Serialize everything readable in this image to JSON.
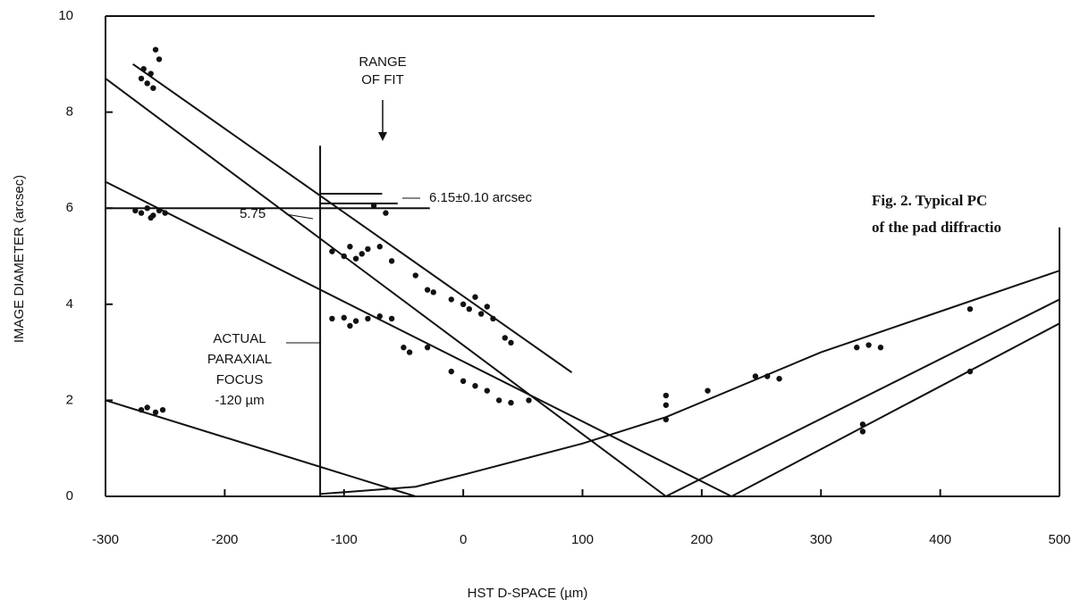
{
  "chart_data": {
    "type": "scatter",
    "xlabel": "HST  D-SPACE (µm)",
    "ylabel": "IMAGE DIAMETER (arcsec)",
    "xlim": [
      -300,
      500
    ],
    "xticks": [
      -300,
      -200,
      -100,
      0,
      100,
      200,
      300,
      400,
      500
    ],
    "ylim": [
      0,
      10
    ],
    "yticks": [
      0,
      2,
      4,
      6,
      8,
      10
    ],
    "color": "#111111",
    "annotations": [
      "RANGE",
      "OF FIT",
      "6.15±0.10 arcsec",
      "5.75",
      "ACTUAL",
      "PARAXIAL",
      "FOCUS",
      "-120 µm"
    ],
    "points": {
      "x": [
        -270,
        -265,
        -262,
        -258,
        -255,
        -268,
        -260,
        -275,
        -270,
        -265,
        -260,
        -255,
        -250,
        -262,
        -270,
        -265,
        -258,
        -252,
        -110,
        -100,
        -95,
        -85,
        -80,
        -70,
        -90,
        -110,
        -100,
        -90,
        -80,
        -70,
        -60,
        -95,
        -75,
        -65,
        -60,
        -40,
        -30,
        -25,
        -10,
        0,
        5,
        10,
        15,
        20,
        25,
        35,
        40,
        -50,
        -45,
        -30,
        -10,
        0,
        10,
        20,
        30,
        40,
        55,
        170,
        170,
        170,
        205,
        245,
        255,
        265,
        330,
        340,
        350,
        335,
        335,
        425,
        425
      ],
      "values": [
        8.7,
        8.6,
        8.8,
        9.3,
        9.1,
        8.9,
        8.5,
        5.95,
        5.9,
        6.0,
        5.85,
        5.95,
        5.9,
        5.8,
        1.8,
        1.85,
        1.75,
        1.8,
        5.1,
        5.0,
        5.2,
        5.05,
        5.15,
        5.2,
        4.95,
        3.7,
        3.72,
        3.65,
        3.7,
        3.75,
        3.7,
        3.55,
        6.05,
        5.9,
        4.9,
        4.6,
        4.3,
        4.25,
        4.1,
        4.0,
        3.9,
        4.15,
        3.8,
        3.95,
        3.7,
        3.3,
        3.2,
        3.1,
        3.0,
        3.1,
        2.6,
        2.4,
        2.3,
        2.2,
        2.0,
        1.95,
        2.0,
        1.6,
        1.9,
        2.1,
        2.2,
        2.5,
        2.5,
        2.45,
        3.1,
        3.15,
        3.1,
        1.5,
        1.35,
        3.9,
        2.6
      ]
    },
    "lines": [
      {
        "x": [
          -277,
          91
        ],
        "values": [
          9.0,
          2.58
        ]
      },
      {
        "x": [
          -300,
          170
        ],
        "values": [
          8.7,
          0
        ]
      },
      {
        "x": [
          170,
          500
        ],
        "values": [
          0,
          4.1
        ]
      },
      {
        "x": [
          -300,
          225
        ],
        "values": [
          6.55,
          0
        ]
      },
      {
        "x": [
          225,
          500
        ],
        "values": [
          0,
          3.6
        ]
      },
      {
        "x": [
          -300,
          -40
        ],
        "values": [
          2.0,
          0
        ]
      },
      {
        "x": [
          -120,
          -40,
          0,
          100,
          170,
          300,
          400,
          500
        ],
        "values": [
          0.05,
          0.2,
          0.45,
          1.1,
          1.65,
          3.0,
          3.85,
          4.7
        ]
      },
      {
        "x": [
          -300,
          -28
        ],
        "values": [
          6,
          6
        ]
      },
      {
        "x": [
          -300,
          345
        ],
        "values": [
          10,
          10
        ]
      },
      {
        "x": [
          -120,
          -120
        ],
        "values": [
          0,
          7.3
        ]
      },
      {
        "x": [
          500,
          500
        ],
        "values": [
          0,
          5.6
        ]
      },
      {
        "x": [
          -120,
          -68
        ],
        "values": [
          6.3,
          6.3
        ]
      },
      {
        "x": [
          -120,
          -55
        ],
        "values": [
          6.1,
          6.1
        ]
      }
    ]
  },
  "caption": [
    "Fig. 2.   Typical PC",
    "of the pad diffractio"
  ]
}
